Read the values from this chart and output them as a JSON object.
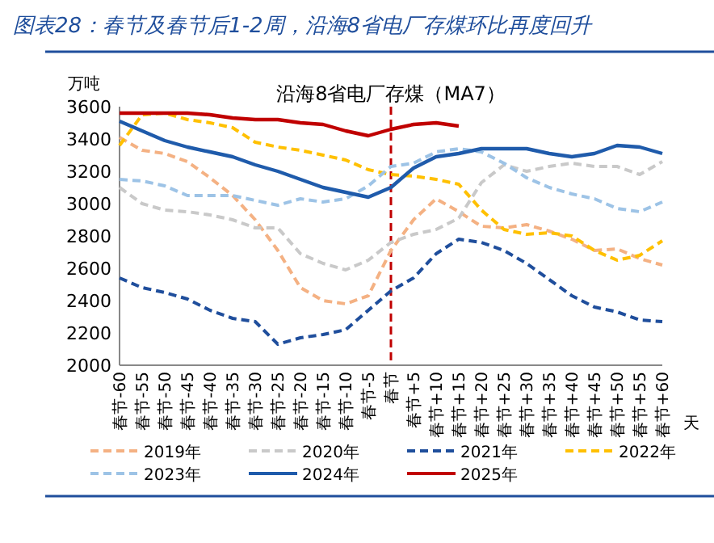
{
  "chart_data": {
    "type": "line",
    "title": "图表28：春节及春节后1-2周，沿海8省电厂存煤环比再度回升",
    "subtitle": "沿海8省电厂存煤（MA7）",
    "ylabel": "万吨",
    "xlabel": "天",
    "categories": [
      "春节-60",
      "春节-55",
      "春节-50",
      "春节-45",
      "春节-40",
      "春节-35",
      "春节-30",
      "春节-25",
      "春节-20",
      "春节-15",
      "春节-10",
      "春节-5",
      "春节",
      "春节+5",
      "春节+10",
      "春节+15",
      "春节+20",
      "春节+25",
      "春节+30",
      "春节+35",
      "春节+40",
      "春节+45",
      "春节+50",
      "春节+55",
      "春节+60"
    ],
    "series": [
      {
        "name": "2019年",
        "color": "#f4b183",
        "line_style": "dashed",
        "values": [
          3410,
          3330,
          3310,
          3260,
          3160,
          3050,
          2900,
          2710,
          2480,
          2400,
          2380,
          2430,
          2710,
          2900,
          3030,
          2950,
          2860,
          2850,
          2870,
          2830,
          2780,
          2710,
          2720,
          2660,
          2620
        ]
      },
      {
        "name": "2020年",
        "color": "#c9c9c9",
        "line_style": "dashed",
        "values": [
          3100,
          3000,
          2960,
          2950,
          2930,
          2900,
          2850,
          2850,
          2690,
          2630,
          2590,
          2650,
          2760,
          2810,
          2840,
          2910,
          3130,
          3240,
          3200,
          3230,
          3250,
          3230,
          3230,
          3180,
          3260
        ]
      },
      {
        "name": "2021年",
        "color": "#1f4e9c",
        "line_style": "dashed",
        "values": [
          2540,
          2480,
          2450,
          2410,
          2340,
          2290,
          2270,
          2130,
          2170,
          2190,
          2220,
          2340,
          2460,
          2540,
          2690,
          2780,
          2760,
          2710,
          2630,
          2530,
          2430,
          2360,
          2330,
          2280,
          2270
        ]
      },
      {
        "name": "2022年",
        "color": "#ffc000",
        "line_style": "dashed",
        "values": [
          3360,
          3550,
          3560,
          3520,
          3500,
          3470,
          3380,
          3350,
          3330,
          3300,
          3270,
          3210,
          3180,
          3170,
          3150,
          3120,
          2960,
          2840,
          2810,
          2820,
          2800,
          2710,
          2650,
          2680,
          2770
        ]
      },
      {
        "name": "2023年",
        "color": "#9dc3e6",
        "line_style": "dashed",
        "values": [
          3150,
          3140,
          3110,
          3050,
          3050,
          3050,
          3020,
          2990,
          3030,
          3010,
          3030,
          3110,
          3230,
          3250,
          3320,
          3340,
          3320,
          3250,
          3160,
          3100,
          3060,
          3030,
          2970,
          2950,
          3010
        ]
      },
      {
        "name": "2024年",
        "color": "#1f5bab",
        "line_style": "solid",
        "values": [
          3510,
          3450,
          3390,
          3350,
          3320,
          3290,
          3240,
          3200,
          3150,
          3100,
          3070,
          3040,
          3100,
          3220,
          3290,
          3310,
          3340,
          3340,
          3340,
          3310,
          3290,
          3310,
          3360,
          3350,
          3310
        ]
      },
      {
        "name": "2025年",
        "color": "#c00000",
        "line_style": "solid",
        "values": [
          3560,
          3560,
          3560,
          3560,
          3550,
          3530,
          3520,
          3520,
          3500,
          3490,
          3450,
          3420,
          3460,
          3490,
          3500,
          3480,
          null,
          null,
          null,
          null,
          null,
          null,
          null,
          null,
          null
        ]
      }
    ],
    "ylim": [
      2000,
      3600
    ],
    "yticks": [
      2000,
      2200,
      2400,
      2600,
      2800,
      3000,
      3200,
      3400,
      3600
    ],
    "ref_lines": [
      {
        "axis": "x",
        "value": "春节",
        "color": "#c00000",
        "line_style": "dashed"
      }
    ],
    "legend": "bottom"
  }
}
